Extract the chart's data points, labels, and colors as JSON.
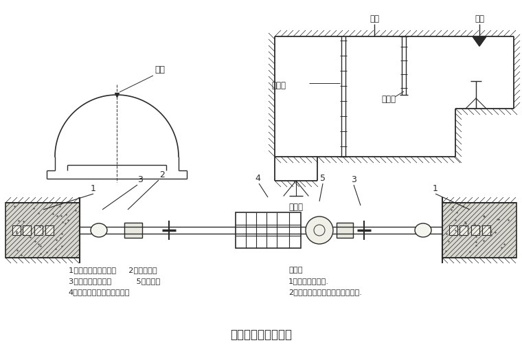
{
  "bg_color": "#ffffff",
  "line_color": "#2a2a2a",
  "hatch_color": "#555555",
  "title": "主要量测方法示意图",
  "label_cedian_top": "测点",
  "label_zhuandian": "转点",
  "label_cedian_right": "测点",
  "label_shuizhunchi": "水准尺",
  "label_daojuanchi": "倒卷尺",
  "label_shuipingyi": "水平仪",
  "note_title": "说明：",
  "note1": "1、洞内观察未述.",
  "note2": "2、其它量测项目按有关说明实施.",
  "text_line1": "1、净空变位仪矩锚杆     2、带孔钢尺",
  "text_line2": "3、有球铰的连接杆          5、百分表",
  "text_line3": "4、维持张拉钢尺拉力的装置"
}
